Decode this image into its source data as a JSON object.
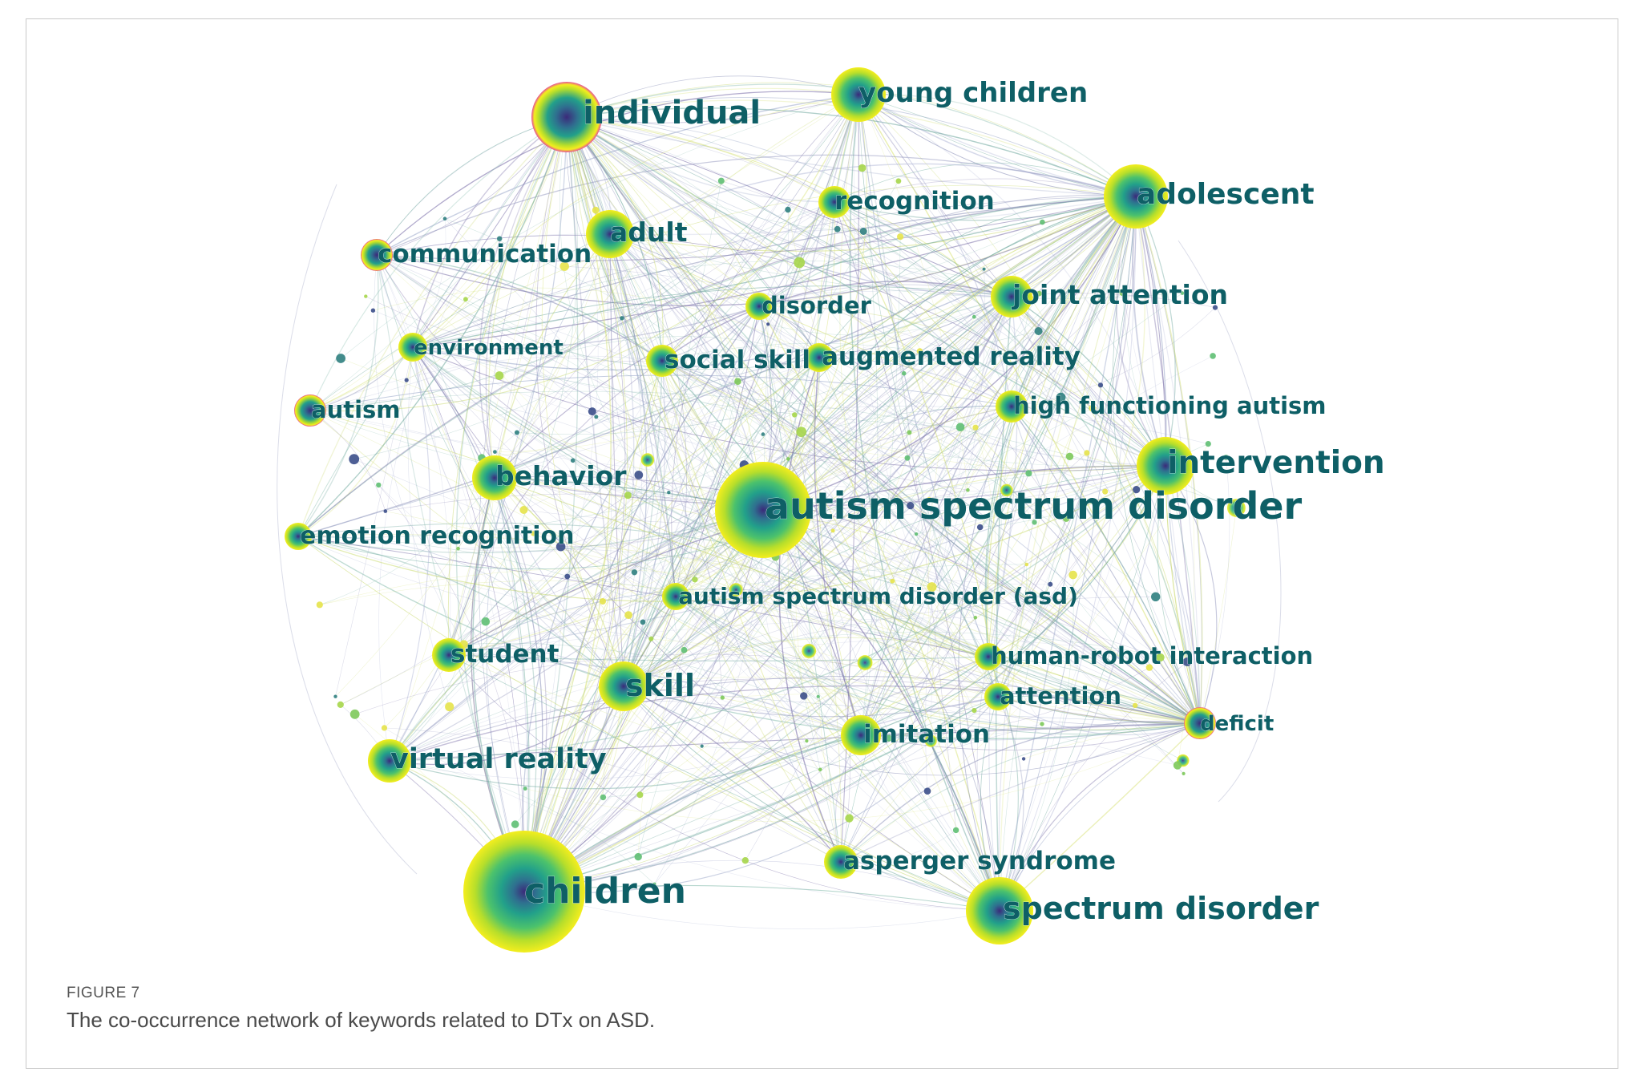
{
  "figure": {
    "label": "FIGURE 7",
    "caption": "The co-occurrence network of keywords related to DTx on ASD."
  },
  "colors": {
    "label_text": "#0e5f66",
    "node_outer": "#f4ee1e",
    "node_inner": "#3b2a7a",
    "node_ring_pink": "#e64c9a"
  },
  "network": {
    "nodes": [
      {
        "id": "individual",
        "label": "individual",
        "weight": 5
      },
      {
        "id": "young_children",
        "label": "young children",
        "weight": 4
      },
      {
        "id": "adolescent",
        "label": "adolescent",
        "weight": 5
      },
      {
        "id": "recognition",
        "label": "recognition",
        "weight": 2
      },
      {
        "id": "adult",
        "label": "adult",
        "weight": 3
      },
      {
        "id": "communication",
        "label": "communication",
        "weight": 2
      },
      {
        "id": "disorder",
        "label": "disorder",
        "weight": 2
      },
      {
        "id": "joint_attention",
        "label": "joint attention",
        "weight": 3
      },
      {
        "id": "environment",
        "label": "environment",
        "weight": 2
      },
      {
        "id": "social_skill",
        "label": "social skill",
        "weight": 2
      },
      {
        "id": "augmented_reality",
        "label": "augmented reality",
        "weight": 2
      },
      {
        "id": "autism",
        "label": "autism",
        "weight": 2
      },
      {
        "id": "high_functioning_autism",
        "label": "high functioning autism",
        "weight": 2
      },
      {
        "id": "behavior",
        "label": "behavior",
        "weight": 3
      },
      {
        "id": "intervention",
        "label": "intervention",
        "weight": 4
      },
      {
        "id": "asd",
        "label": "autism spectrum disorder",
        "weight": 8
      },
      {
        "id": "emotion_recognition",
        "label": "emotion recognition",
        "weight": 2
      },
      {
        "id": "asd_abbrev",
        "label": "autism spectrum disorder (asd)",
        "weight": 2
      },
      {
        "id": "student",
        "label": "student",
        "weight": 2
      },
      {
        "id": "human_robot_interaction",
        "label": "human-robot interaction",
        "weight": 2
      },
      {
        "id": "skill",
        "label": "skill",
        "weight": 3
      },
      {
        "id": "attention",
        "label": "attention",
        "weight": 2
      },
      {
        "id": "deficit",
        "label": "deficit",
        "weight": 2
      },
      {
        "id": "imitation",
        "label": "imitation",
        "weight": 3
      },
      {
        "id": "virtual_reality",
        "label": "virtual reality",
        "weight": 3
      },
      {
        "id": "asperger_syndrome",
        "label": "asperger syndrome",
        "weight": 2
      },
      {
        "id": "children",
        "label": "children",
        "weight": 10
      },
      {
        "id": "spectrum_disorder",
        "label": "spectrum disorder",
        "weight": 5
      }
    ]
  }
}
